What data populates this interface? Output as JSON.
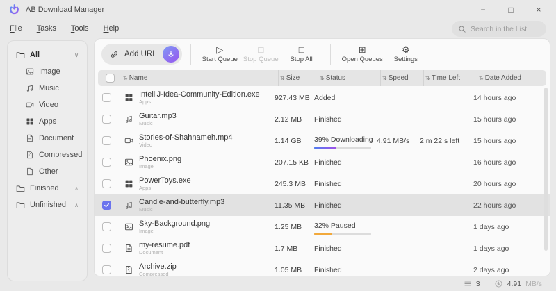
{
  "window": {
    "title": "AB Download Manager",
    "controls": {
      "minimize": "−",
      "maximize": "□",
      "close": "×"
    }
  },
  "icons": {
    "sort": "⇅",
    "chevron_down": "∨",
    "chevron_up": "∧",
    "play": "▷",
    "stop": "□",
    "open_queues": "⊞",
    "settings": "⚙"
  },
  "menu": {
    "items": [
      {
        "label": "File"
      },
      {
        "label": "Tasks"
      },
      {
        "label": "Tools"
      },
      {
        "label": "Help"
      }
    ]
  },
  "search": {
    "placeholder": "Search in the List"
  },
  "toolbar": {
    "add_url": "Add URL",
    "start_queue": "Start Queue",
    "stop_queue": "Stop Queue",
    "stop_all": "Stop All",
    "open_queues": "Open Queues",
    "settings": "Settings"
  },
  "sidebar": {
    "all_label": "All",
    "categories": [
      {
        "label": "Image"
      },
      {
        "label": "Music"
      },
      {
        "label": "Video"
      },
      {
        "label": "Apps"
      },
      {
        "label": "Document"
      },
      {
        "label": "Compressed"
      },
      {
        "label": "Other"
      }
    ],
    "finished_label": "Finished",
    "unfinished_label": "Unfinished"
  },
  "table": {
    "headers": {
      "name": "Name",
      "size": "Size",
      "status": "Status",
      "speed": "Speed",
      "time_left": "Time Left",
      "date_added": "Date Added"
    },
    "rows": [
      {
        "name": "IntelliJ-Idea-Community-Edition.exe",
        "type": "Apps",
        "size": "927.43 MB",
        "status": "Added",
        "speed": "",
        "time_left": "",
        "date_added": "14 hours ago",
        "selected": false
      },
      {
        "name": "Guitar.mp3",
        "type": "Music",
        "size": "2.12 MB",
        "status": "Finished",
        "speed": "",
        "time_left": "",
        "date_added": "15 hours ago",
        "selected": false
      },
      {
        "name": "Stories-of-Shahnameh.mp4",
        "type": "Video",
        "size": "1.14 GB",
        "status": "39% Downloading",
        "progress": "39%",
        "progress_kind": "downloading",
        "speed": "4.91 MB/s",
        "time_left": "2 m 22 s left",
        "date_added": "15 hours ago",
        "selected": false
      },
      {
        "name": "Phoenix.png",
        "type": "Image",
        "size": "207.15 KB",
        "status": "Finished",
        "speed": "",
        "time_left": "",
        "date_added": "16 hours ago",
        "selected": false
      },
      {
        "name": "PowerToys.exe",
        "type": "Apps",
        "size": "245.3 MB",
        "status": "Finished",
        "speed": "",
        "time_left": "",
        "date_added": "20 hours ago",
        "selected": false
      },
      {
        "name": "Candle-and-butterfly.mp3",
        "type": "Music",
        "size": "11.35 MB",
        "status": "Finished",
        "speed": "",
        "time_left": "",
        "date_added": "22 hours ago",
        "selected": true
      },
      {
        "name": "Sky-Background.png",
        "type": "Image",
        "size": "1.25 MB",
        "status": "32% Paused",
        "progress": "32%",
        "progress_kind": "paused",
        "speed": "",
        "time_left": "",
        "date_added": "1 days ago",
        "selected": false
      },
      {
        "name": "my-resume.pdf",
        "type": "Document",
        "size": "1.7 MB",
        "status": "Finished",
        "speed": "",
        "time_left": "",
        "date_added": "1 days ago",
        "selected": false
      },
      {
        "name": "Archive.zip",
        "type": "Compressed",
        "size": "1.05 MB",
        "status": "Finished",
        "speed": "",
        "time_left": "",
        "date_added": "2 days ago",
        "selected": false
      }
    ]
  },
  "statusbar": {
    "active_count": "3",
    "speed_value": "4.91",
    "speed_unit": "MB/s"
  },
  "colors": {
    "accent_blue": "#4f7df0",
    "accent_purple": "#a24fe8",
    "paused_orange": "#f2a93b",
    "checkbox_checked": "#6b74ee"
  }
}
